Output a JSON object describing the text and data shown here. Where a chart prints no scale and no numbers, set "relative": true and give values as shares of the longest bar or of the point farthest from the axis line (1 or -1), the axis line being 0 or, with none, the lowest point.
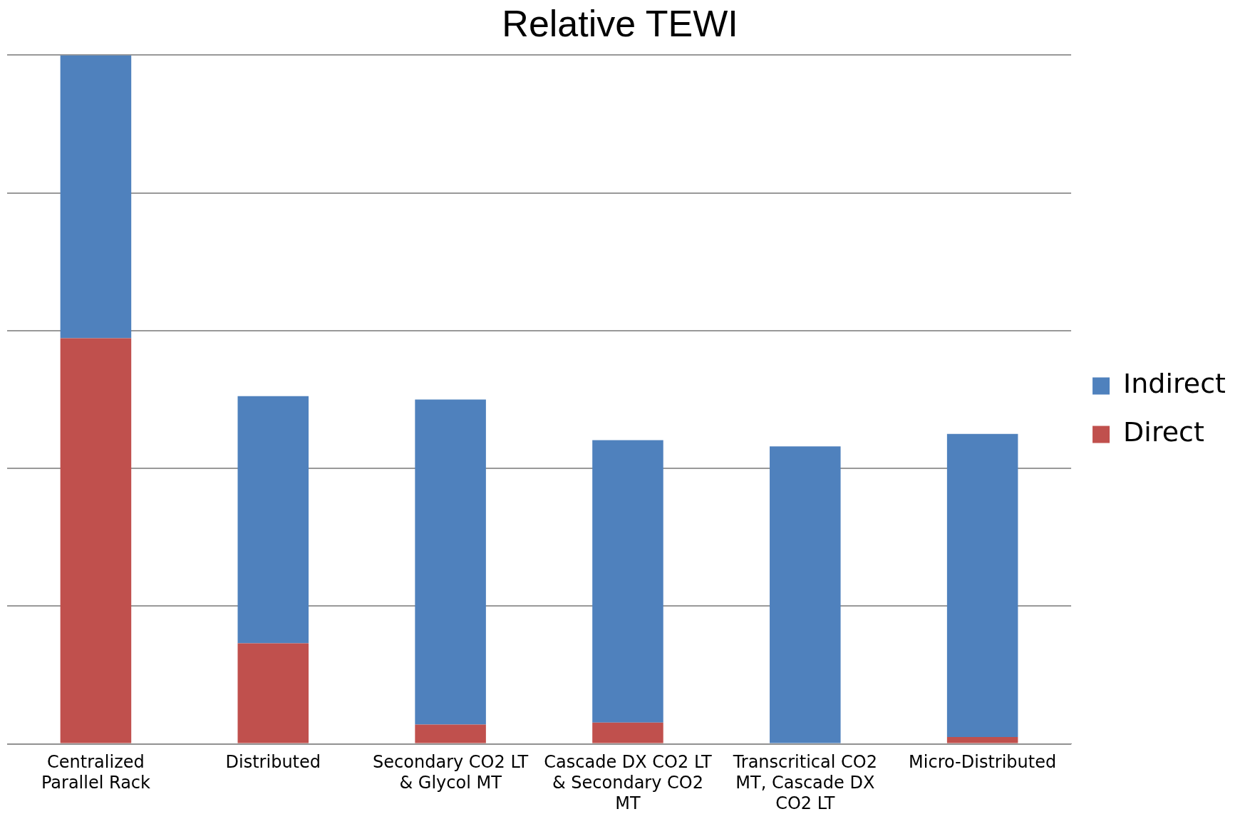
{
  "chart_data": {
    "type": "bar",
    "title": "Relative TEWI",
    "stacked": true,
    "relative": true,
    "grid": "y",
    "legend": "right",
    "categories": [
      "Centralized Parallel Rack",
      "Distributed",
      "Secondary CO2 LT & Glycol MT",
      "Cascade DX CO2 LT & Secondary CO2 MT",
      "Transcritical CO2 MT, Cascade DX CO2 LT",
      "Micro-Distributed"
    ],
    "series": [
      {
        "name": "Direct",
        "color": "#c0504d",
        "values": [
          0.589,
          0.146,
          0.028,
          0.031,
          0,
          0.01
        ]
      },
      {
        "name": "Indirect",
        "color": "#4f81bd",
        "values": [
          0.411,
          0.359,
          0.472,
          0.41,
          0.432,
          0.44
        ]
      }
    ]
  }
}
